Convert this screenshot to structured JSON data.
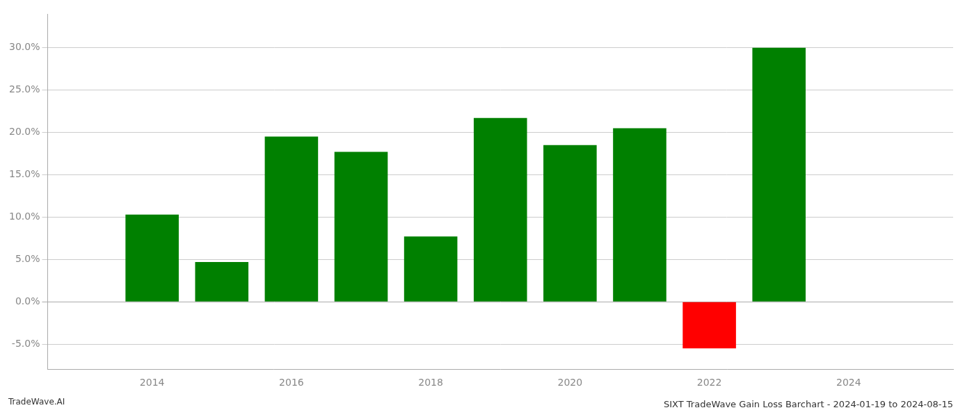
{
  "chart_data": {
    "type": "bar",
    "title": "SIXT TradeWave Gain Loss Barchart - 2024-01-19 to 2024-08-15",
    "annotations": [
      "TradeWave.AI"
    ],
    "x": [
      2014,
      2015,
      2016,
      2017,
      2018,
      2019,
      2020,
      2021,
      2022,
      2023
    ],
    "values": [
      0.103,
      0.047,
      0.195,
      0.177,
      0.077,
      0.217,
      0.185,
      0.205,
      -0.055,
      0.3
    ],
    "colors": [
      "#008000",
      "#008000",
      "#008000",
      "#008000",
      "#008000",
      "#008000",
      "#008000",
      "#008000",
      "#ff0000",
      "#008000"
    ],
    "xlim": [
      2012.5,
      2025.5
    ],
    "xticks": [
      2014,
      2016,
      2018,
      2020,
      2022,
      2024
    ],
    "ylim": [
      -0.08,
      0.34
    ],
    "yticks": [
      {
        "value": -0.05,
        "label": "-5.0%"
      },
      {
        "value": 0.0,
        "label": "0.0%"
      },
      {
        "value": 0.05,
        "label": "5.0%"
      },
      {
        "value": 0.1,
        "label": "10.0%"
      },
      {
        "value": 0.15,
        "label": "15.0%"
      },
      {
        "value": 0.2,
        "label": "20.0%"
      },
      {
        "value": 0.25,
        "label": "25.0%"
      },
      {
        "value": 0.3,
        "label": "30.0%"
      }
    ],
    "grid": "y"
  }
}
